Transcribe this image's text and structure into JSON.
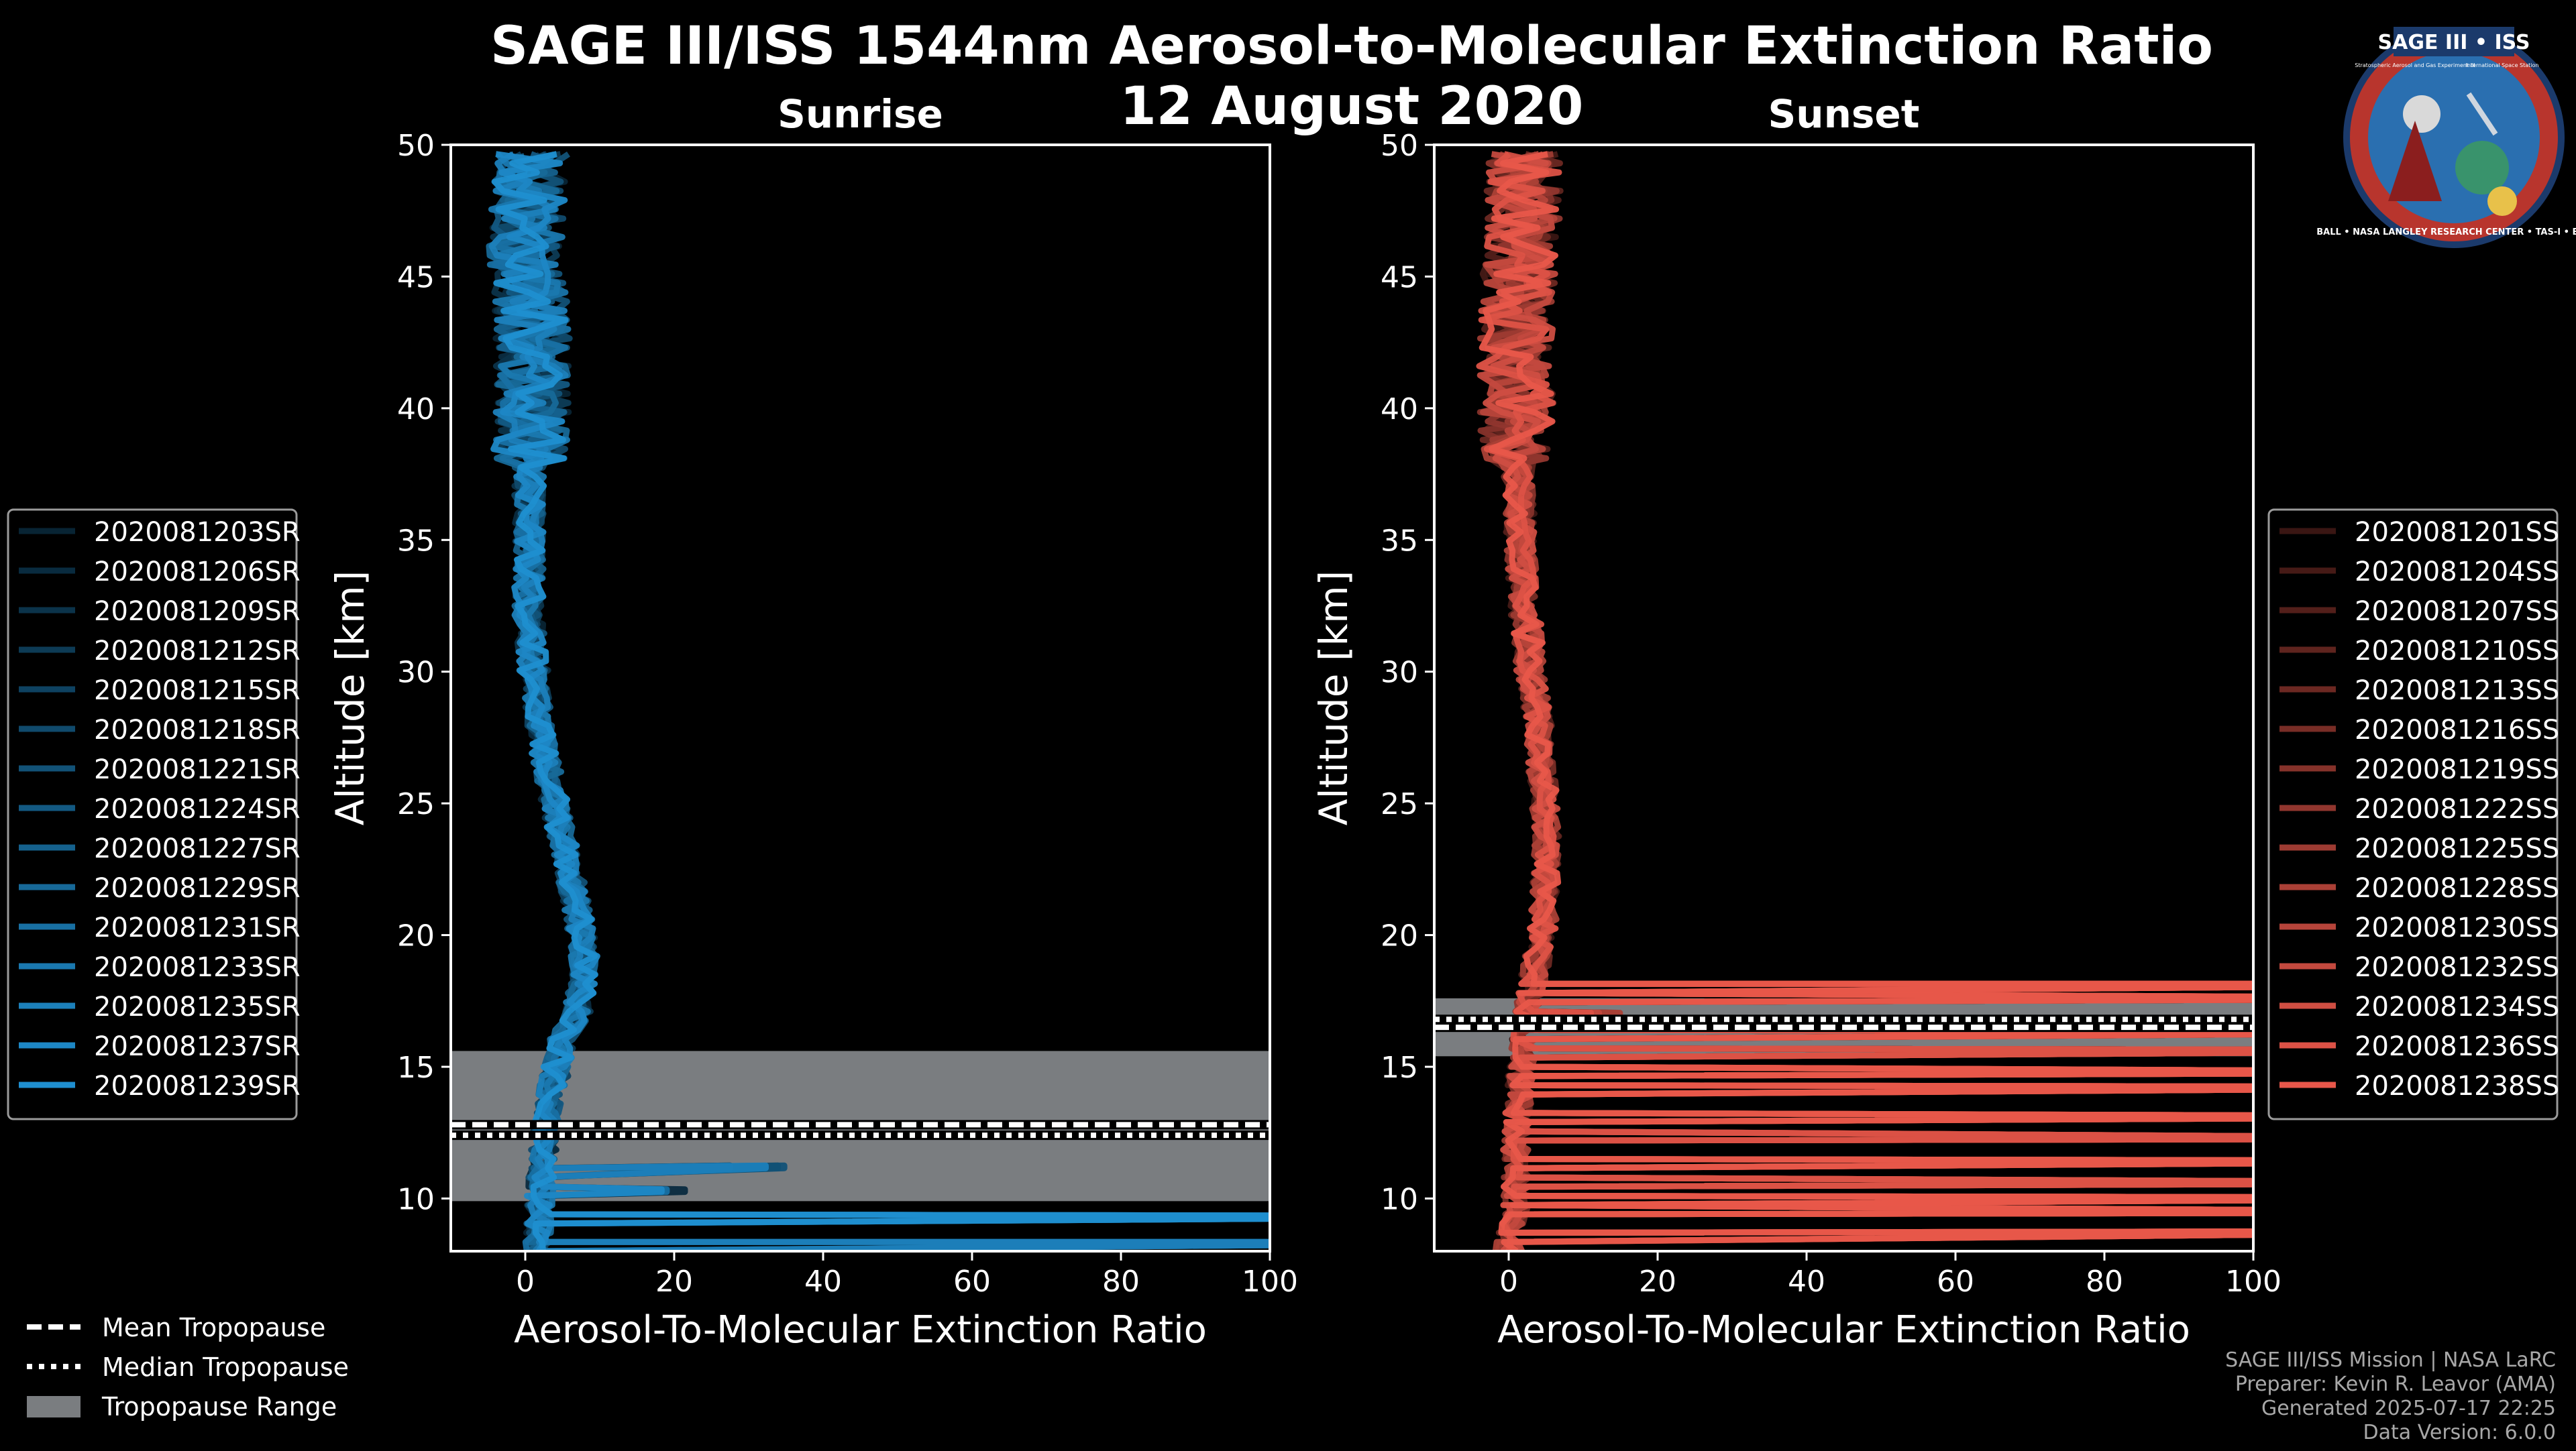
{
  "title": "SAGE III/ISS 1544nm Aerosol-to-Molecular Extinction Ratio",
  "date": "12 August 2020",
  "colors": {
    "sunrise": "#1f8fd0",
    "sunset": "#e8574a",
    "tropopause_range": "#7a7d80"
  },
  "logo": {
    "name": "SAGE III • ISS",
    "subtitle": "Stratospheric Aerosol and Gas Experiment III",
    "station": "International Space Station",
    "ring": "BALL • NASA LANGLEY RESEARCH CENTER • TAS-I • ESA"
  },
  "footer": {
    "line1": "SAGE III/ISS Mission | NASA LaRC",
    "line2": "Preparer: Kevin R. Leavor (AMA)",
    "line3": "Generated 2025-07-17 22:25",
    "line4": "Data Version: 6.0.0"
  },
  "bottom_legend": [
    {
      "label": "Mean Tropopause",
      "style": "dashed"
    },
    {
      "label": "Median Tropopause",
      "style": "dotted"
    },
    {
      "label": "Tropopause Range",
      "style": "patch"
    }
  ],
  "chart_data": [
    {
      "type": "line",
      "panel": "sunrise",
      "title": "Sunrise",
      "xlabel": "Aerosol-To-Molecular Extinction Ratio",
      "ylabel": "Altitude [km]",
      "xlim": [
        -10,
        100
      ],
      "ylim": [
        8,
        50
      ],
      "xticks": [
        0,
        20,
        40,
        60,
        80,
        100
      ],
      "yticks": [
        10,
        15,
        20,
        25,
        30,
        35,
        40,
        45,
        50
      ],
      "tropopause": {
        "mean": 12.8,
        "median": 12.4,
        "min": 9.9,
        "max": 15.6
      },
      "profile_center": [
        {
          "alt": 8,
          "ratio": 1.5
        },
        {
          "alt": 10,
          "ratio": 2
        },
        {
          "alt": 12,
          "ratio": 2.5
        },
        {
          "alt": 14,
          "ratio": 3.5
        },
        {
          "alt": 16,
          "ratio": 5
        },
        {
          "alt": 17,
          "ratio": 7
        },
        {
          "alt": 19,
          "ratio": 8
        },
        {
          "alt": 21,
          "ratio": 7
        },
        {
          "alt": 23,
          "ratio": 5.5
        },
        {
          "alt": 25,
          "ratio": 4
        },
        {
          "alt": 27,
          "ratio": 2.5
        },
        {
          "alt": 29,
          "ratio": 1.5
        },
        {
          "alt": 32,
          "ratio": 0.5
        },
        {
          "alt": 35,
          "ratio": 0.5
        },
        {
          "alt": 38,
          "ratio": 0.5
        },
        {
          "alt": 40,
          "ratio": 1
        },
        {
          "alt": 43,
          "ratio": 1
        },
        {
          "alt": 46,
          "ratio": 0
        },
        {
          "alt": 49.5,
          "ratio": 1
        }
      ],
      "spikes": [
        {
          "alt": 8.2,
          "ratio": 100
        },
        {
          "alt": 9.2,
          "ratio": 100
        },
        {
          "alt": 10.2,
          "ratio": 22
        },
        {
          "alt": 11.1,
          "ratio": 35
        }
      ],
      "series": [
        {
          "name": "2020081203SR"
        },
        {
          "name": "2020081206SR"
        },
        {
          "name": "2020081209SR"
        },
        {
          "name": "2020081212SR"
        },
        {
          "name": "2020081215SR"
        },
        {
          "name": "2020081218SR"
        },
        {
          "name": "2020081221SR"
        },
        {
          "name": "2020081224SR"
        },
        {
          "name": "2020081227SR"
        },
        {
          "name": "2020081229SR"
        },
        {
          "name": "2020081231SR"
        },
        {
          "name": "2020081233SR"
        },
        {
          "name": "2020081235SR"
        },
        {
          "name": "2020081237SR"
        },
        {
          "name": "2020081239SR"
        }
      ]
    },
    {
      "type": "line",
      "panel": "sunset",
      "title": "Sunset",
      "xlabel": "Aerosol-To-Molecular Extinction Ratio",
      "ylabel": "Altitude [km]",
      "xlim": [
        -10,
        100
      ],
      "ylim": [
        8,
        50
      ],
      "xticks": [
        0,
        20,
        40,
        60,
        80,
        100
      ],
      "yticks": [
        10,
        15,
        20,
        25,
        30,
        35,
        40,
        45,
        50
      ],
      "tropopause": {
        "mean": 16.5,
        "median": 16.8,
        "min": 15.4,
        "max": 17.6
      },
      "profile_center": [
        {
          "alt": 8,
          "ratio": 0
        },
        {
          "alt": 10,
          "ratio": 1
        },
        {
          "alt": 12,
          "ratio": 1
        },
        {
          "alt": 14,
          "ratio": 1.5
        },
        {
          "alt": 16,
          "ratio": 2
        },
        {
          "alt": 18,
          "ratio": 3
        },
        {
          "alt": 20,
          "ratio": 4.5
        },
        {
          "alt": 22,
          "ratio": 5
        },
        {
          "alt": 24,
          "ratio": 5
        },
        {
          "alt": 26,
          "ratio": 4.5
        },
        {
          "alt": 28,
          "ratio": 4
        },
        {
          "alt": 30,
          "ratio": 3
        },
        {
          "alt": 33,
          "ratio": 2
        },
        {
          "alt": 36,
          "ratio": 1.5
        },
        {
          "alt": 40,
          "ratio": 1
        },
        {
          "alt": 44,
          "ratio": 1
        },
        {
          "alt": 47,
          "ratio": 2
        },
        {
          "alt": 49.5,
          "ratio": 2
        }
      ],
      "spikes": [
        {
          "alt": 8.6,
          "ratio": 100
        },
        {
          "alt": 9.4,
          "ratio": 100
        },
        {
          "alt": 9.9,
          "ratio": 100
        },
        {
          "alt": 10.5,
          "ratio": 100
        },
        {
          "alt": 11.3,
          "ratio": 100
        },
        {
          "alt": 12.2,
          "ratio": 100
        },
        {
          "alt": 13.0,
          "ratio": 100
        },
        {
          "alt": 14.1,
          "ratio": 100
        },
        {
          "alt": 14.7,
          "ratio": 100
        },
        {
          "alt": 15.5,
          "ratio": 100
        },
        {
          "alt": 16.2,
          "ratio": 100
        },
        {
          "alt": 16.9,
          "ratio": 15
        },
        {
          "alt": 17.5,
          "ratio": 100
        },
        {
          "alt": 18.0,
          "ratio": 100
        }
      ],
      "series": [
        {
          "name": "2020081201SS"
        },
        {
          "name": "2020081204SS"
        },
        {
          "name": "2020081207SS"
        },
        {
          "name": "2020081210SS"
        },
        {
          "name": "2020081213SS"
        },
        {
          "name": "2020081216SS"
        },
        {
          "name": "2020081219SS"
        },
        {
          "name": "2020081222SS"
        },
        {
          "name": "2020081225SS"
        },
        {
          "name": "2020081228SS"
        },
        {
          "name": "2020081230SS"
        },
        {
          "name": "2020081232SS"
        },
        {
          "name": "2020081234SS"
        },
        {
          "name": "2020081236SS"
        },
        {
          "name": "2020081238SS"
        }
      ]
    }
  ]
}
